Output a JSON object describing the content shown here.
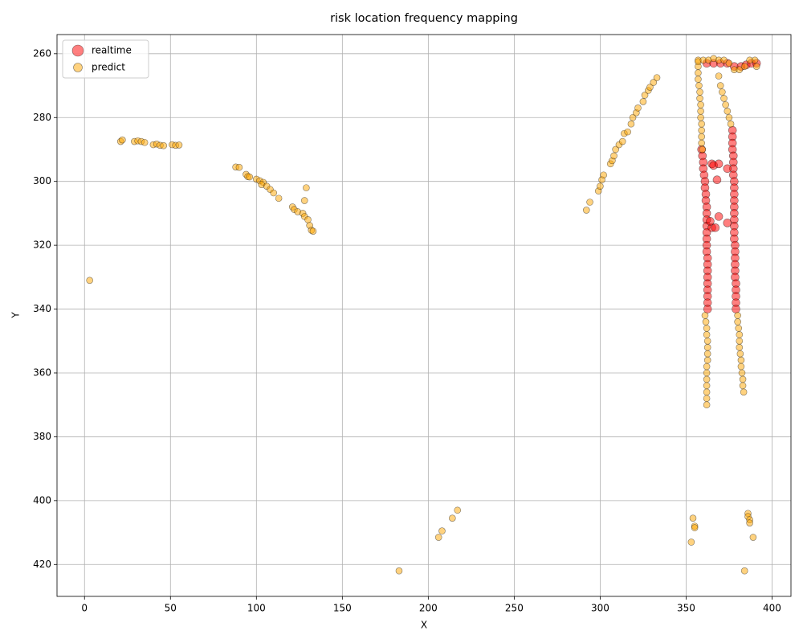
{
  "chart_data": {
    "type": "scatter",
    "title": "risk location frequency mapping",
    "x_label": "X",
    "y_label": "Y",
    "xlim": [
      -16,
      411
    ],
    "ylim": [
      430,
      254
    ],
    "xticks": [
      0,
      50,
      100,
      150,
      200,
      250,
      300,
      350,
      400
    ],
    "yticks": [
      260,
      280,
      300,
      320,
      340,
      360,
      380,
      400,
      420
    ],
    "grid": true,
    "legend": "upper-left",
    "series": [
      {
        "name": "realtime",
        "color": "#ff0000",
        "x": [
          359,
          359.5,
          360,
          360,
          360.5,
          361,
          361,
          361.5,
          361.5,
          362,
          362,
          362,
          362,
          362,
          362,
          362,
          362,
          362.5,
          362.5,
          362.5,
          362.5,
          362.5,
          362.5,
          362.5,
          362.5,
          362.5,
          377,
          377,
          377,
          377,
          377.5,
          377.5,
          377.5,
          377.5,
          378,
          378,
          378,
          378,
          378,
          378,
          378,
          378,
          378,
          378,
          378.5,
          378.5,
          378.5,
          378.5,
          378.5,
          378.5,
          379,
          379,
          379,
          379,
          379,
          365,
          366,
          369,
          368,
          374,
          369,
          374,
          365,
          367,
          364,
          362,
          366,
          370,
          374,
          378,
          382,
          385,
          388,
          391
        ],
        "y": [
          290,
          292,
          294,
          296,
          298,
          300,
          302,
          304,
          306,
          308,
          310,
          312,
          314,
          316,
          318,
          320,
          322,
          324,
          326,
          328,
          330,
          332,
          334,
          336,
          338,
          340,
          284,
          286,
          288,
          290,
          292,
          294,
          296,
          298,
          300,
          302,
          304,
          306,
          308,
          310,
          312,
          314,
          316,
          318,
          320,
          322,
          324,
          326,
          328,
          330,
          332,
          334,
          336,
          338,
          340,
          294.5,
          295,
          294.5,
          299.5,
          296,
          311,
          313,
          314.5,
          314.5,
          312.5,
          263,
          263,
          263,
          263,
          264,
          264,
          263.5,
          263,
          263
        ]
      },
      {
        "name": "predict",
        "color": "#ffa500",
        "x": [
          3,
          21,
          22,
          29,
          31,
          33,
          35,
          40,
          42,
          44,
          46,
          51,
          53,
          55,
          88,
          90,
          94,
          95,
          96,
          100,
          102,
          104,
          103,
          106,
          108,
          110,
          113,
          121,
          122,
          124,
          127,
          128,
          130,
          131,
          132,
          133,
          128,
          129,
          292,
          294,
          299,
          300,
          301,
          302,
          306,
          307,
          308,
          309,
          311,
          313,
          314,
          316,
          318,
          319,
          321,
          322,
          325,
          326,
          328,
          329,
          331,
          333,
          183,
          206,
          208,
          214,
          217,
          353,
          354,
          355,
          355,
          386,
          386,
          387,
          387,
          389,
          384,
          357,
          357,
          357,
          357,
          357.5,
          358,
          358,
          358.5,
          358.5,
          358.5,
          359,
          359,
          359,
          359,
          359.5,
          361,
          361.5,
          362,
          362,
          362.5,
          362.5,
          362.5,
          362.5,
          362,
          362,
          362,
          362,
          362,
          362,
          362,
          369,
          370,
          371,
          372,
          373,
          374,
          375,
          376,
          380,
          380,
          380.5,
          381,
          381,
          381,
          381.5,
          382,
          382,
          382.5,
          383,
          383,
          383.5,
          357,
          360,
          363,
          366,
          369,
          372,
          375,
          378,
          381,
          384,
          387,
          390,
          391
        ],
        "y": [
          331,
          287.5,
          287,
          287.5,
          287.3,
          287.5,
          287.8,
          288.5,
          288.3,
          288.7,
          288.8,
          288.5,
          288.7,
          288.6,
          295.5,
          295.6,
          297.8,
          298.5,
          298.6,
          299.3,
          299.8,
          300.3,
          301,
          301.5,
          302.5,
          303.6,
          305.3,
          308,
          308.8,
          309.5,
          310,
          311,
          312,
          313.8,
          315.3,
          315.6,
          306,
          302,
          309,
          306.5,
          303,
          301.5,
          299.5,
          298,
          294.5,
          293.5,
          292,
          290,
          288.5,
          287.5,
          285,
          284.5,
          282,
          280,
          278.5,
          277,
          275,
          273,
          271.5,
          270.5,
          269,
          267.5,
          422,
          411.5,
          409.5,
          405.5,
          403,
          413,
          405.5,
          408,
          408.5,
          404,
          405,
          406,
          407,
          411.5,
          422,
          262,
          264,
          266,
          268,
          270,
          272,
          274,
          276,
          278,
          280,
          282,
          284,
          286,
          288,
          290,
          342,
          344,
          346,
          348,
          350,
          352,
          354,
          356,
          358,
          360,
          362,
          364,
          366,
          368,
          370,
          267,
          270,
          272,
          274,
          276,
          278,
          280,
          282,
          342,
          344,
          346,
          348,
          350,
          352,
          354,
          356,
          358,
          360,
          362,
          364,
          366,
          262.5,
          262,
          262,
          261.5,
          262,
          262,
          263,
          265,
          265,
          264,
          262,
          262,
          264
        ]
      }
    ]
  }
}
